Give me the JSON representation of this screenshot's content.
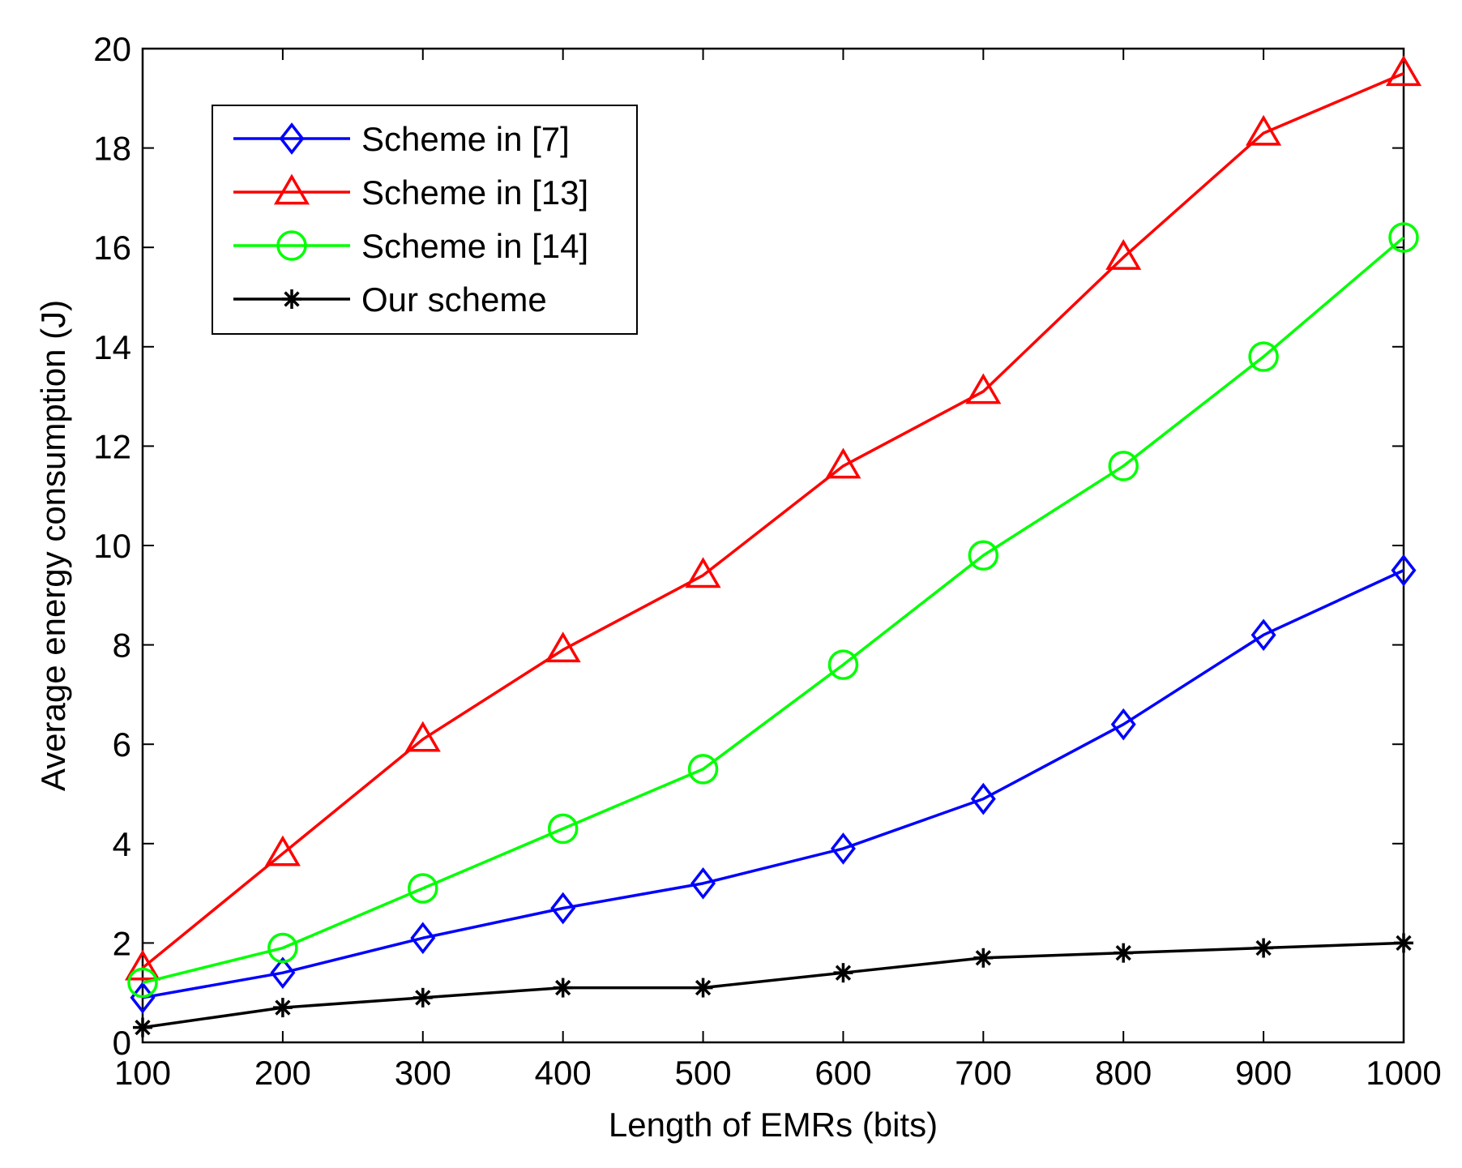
{
  "chart_data": {
    "type": "line",
    "title": "",
    "xlabel": "Length of EMRs (bits)",
    "ylabel": "Average energy consumption (J)",
    "xlim": [
      100,
      1000
    ],
    "ylim": [
      0,
      20
    ],
    "x": [
      100,
      200,
      300,
      400,
      500,
      600,
      700,
      800,
      900,
      1000
    ],
    "xticks": [
      "100",
      "200",
      "300",
      "400",
      "500",
      "600",
      "700",
      "800",
      "900",
      "1000"
    ],
    "yticks": [
      "0",
      "2",
      "4",
      "6",
      "8",
      "10",
      "12",
      "14",
      "16",
      "18",
      "20"
    ],
    "grid": false,
    "legend_position": "top-left",
    "series": [
      {
        "name": "Scheme in [7]",
        "color": "#0000ff",
        "marker": "diamond",
        "values": [
          0.9,
          1.4,
          2.1,
          2.7,
          3.2,
          3.9,
          4.9,
          6.4,
          8.2,
          9.5
        ]
      },
      {
        "name": "Scheme in [13]",
        "color": "#ff0000",
        "marker": "triangle",
        "values": [
          1.5,
          3.8,
          6.1,
          7.9,
          9.4,
          11.6,
          13.1,
          15.8,
          18.3,
          19.5
        ]
      },
      {
        "name": "Scheme in [14]",
        "color": "#00ff00",
        "marker": "circle",
        "values": [
          1.2,
          1.9,
          3.1,
          4.3,
          5.5,
          7.6,
          9.8,
          11.6,
          13.8,
          16.2
        ]
      },
      {
        "name": "Our scheme",
        "color": "#000000",
        "marker": "asterisk",
        "values": [
          0.3,
          0.7,
          0.9,
          1.1,
          1.1,
          1.4,
          1.7,
          1.8,
          1.9,
          2.0
        ]
      }
    ]
  }
}
